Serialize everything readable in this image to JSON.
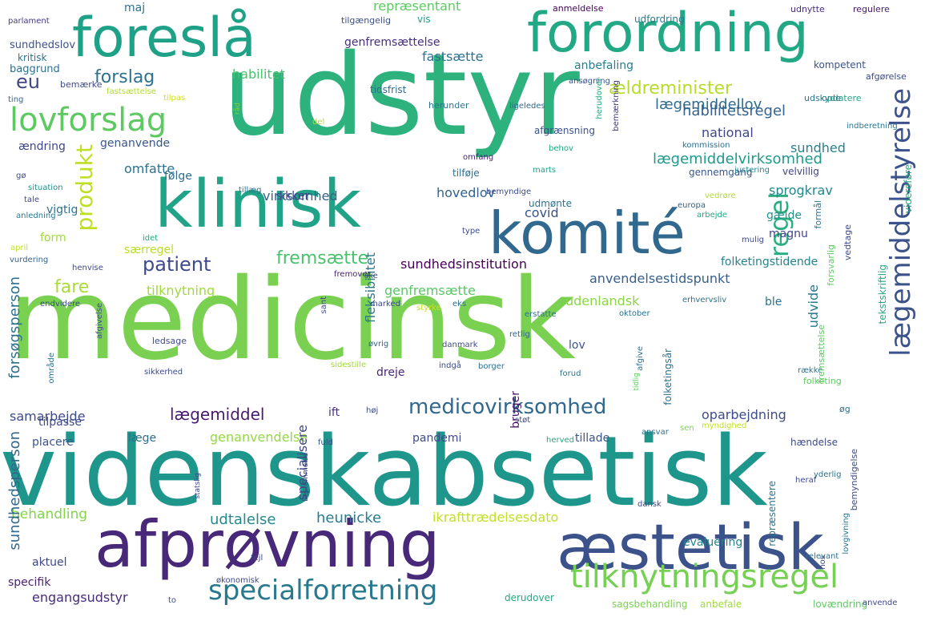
{
  "words": [
    {
      "text": "medicinsk",
      "color": "#7ad151"
    },
    {
      "text": "udstyr",
      "color": "#2db27d"
    },
    {
      "text": "videnskabsetisk",
      "color": "#1f968b"
    },
    {
      "text": "afprøvning",
      "color": "#482878"
    },
    {
      "text": "æstetisk",
      "color": "#3b528b"
    },
    {
      "text": "klinisk",
      "color": "#20a386"
    },
    {
      "text": "komité",
      "color": "#31688e"
    },
    {
      "text": "foreslå",
      "color": "#1fa187"
    },
    {
      "text": "forordning",
      "color": "#22a884"
    },
    {
      "text": "lægemiddelstyrelse",
      "color": "#3b528b"
    },
    {
      "text": "lovforslag",
      "color": "#5ec962"
    },
    {
      "text": "tilknytningsregel",
      "color": "#75d054"
    },
    {
      "text": "specialforretning",
      "color": "#2a788e"
    },
    {
      "text": "medicovirksomhed",
      "color": "#31688e"
    },
    {
      "text": "regel",
      "color": "#29af7f"
    },
    {
      "text": "produkt",
      "color": "#bddf26"
    },
    {
      "text": "patient",
      "color": "#3e4a89"
    },
    {
      "text": "fremsætte",
      "color": "#4ac16d"
    },
    {
      "text": "forslag",
      "color": "#2c728e"
    },
    {
      "text": "eu",
      "color": "#404688"
    },
    {
      "text": "fare",
      "color": "#a8db34"
    },
    {
      "text": "ældreminister",
      "color": "#b5de2b"
    },
    {
      "text": "lægemiddellov",
      "color": "#2f6c8e"
    },
    {
      "text": "habilitetsregel",
      "color": "#33638d"
    },
    {
      "text": "lægemiddelvirksomhed",
      "color": "#1f9a8a"
    },
    {
      "text": "sundhedsinstitution",
      "color": "#440154"
    },
    {
      "text": "anvendelsestidspunkt",
      "color": "#35608d"
    },
    {
      "text": "samarbejde",
      "color": "#3e4a89"
    },
    {
      "text": "lægemiddel",
      "color": "#481a6c"
    },
    {
      "text": "ikrafttrædelsesdato",
      "color": "#c0df25"
    },
    {
      "text": "udtalelse",
      "color": "#23898e"
    },
    {
      "text": "heunicke",
      "color": "#287c8e"
    },
    {
      "text": "engangsudstyr",
      "color": "#472c7a"
    },
    {
      "text": "behandling",
      "color": "#84d44b"
    },
    {
      "text": "genanvendelse",
      "color": "#95d840"
    },
    {
      "text": "oparbejdning",
      "color": "#3e4c8a"
    },
    {
      "text": "sundhedsperson",
      "color": "#31688e"
    },
    {
      "text": "forsøgsperson",
      "color": "#2d708e"
    },
    {
      "text": "fleksibilitet",
      "color": "#2a778e"
    },
    {
      "text": "genfremsættelse",
      "color": "#472f7d"
    },
    {
      "text": "genfremsætte",
      "color": "#58c765"
    },
    {
      "text": "repræsentant",
      "color": "#5ec962"
    },
    {
      "text": "fastsætte",
      "color": "#2c728e"
    },
    {
      "text": "anbefaling",
      "color": "#287d8e"
    },
    {
      "text": "habilitet",
      "color": "#4ac16d"
    },
    {
      "text": "tilknytning",
      "color": "#a0da39"
    },
    {
      "text": "udenlandsk",
      "color": "#8bd646"
    },
    {
      "text": "specialisere",
      "color": "#3f4788"
    },
    {
      "text": "folketingstidende",
      "color": "#26818e"
    },
    {
      "text": "virksomhed",
      "color": "#33638d"
    },
    {
      "text": "omfatte",
      "color": "#2c728e"
    },
    {
      "text": "hovedlov",
      "color": "#33638d"
    },
    {
      "text": "sprogkrav",
      "color": "#24868e"
    },
    {
      "text": "national",
      "color": "#404688"
    },
    {
      "text": "sundhed",
      "color": "#26828e"
    },
    {
      "text": "covid",
      "color": "#3a548c"
    },
    {
      "text": "gælde",
      "color": "#21918c"
    },
    {
      "text": "magnu",
      "color": "#414487"
    },
    {
      "text": "udvide",
      "color": "#2a788e"
    },
    {
      "text": "ble",
      "color": "#2c728e"
    },
    {
      "text": "vigtig",
      "color": "#2c728e"
    },
    {
      "text": "sikker",
      "color": "#3f4889"
    },
    {
      "text": "pandemi",
      "color": "#3e4a89"
    },
    {
      "text": "tillade",
      "color": "#39558c"
    },
    {
      "text": "lov",
      "color": "#3b528b"
    },
    {
      "text": "dreje",
      "color": "#482677"
    },
    {
      "text": "ift",
      "color": "#46337f"
    },
    {
      "text": "læge",
      "color": "#2e6e8e"
    },
    {
      "text": "placere",
      "color": "#3a548c"
    },
    {
      "text": "tilpasse",
      "color": "#3e4a89"
    },
    {
      "text": "aktuel",
      "color": "#3f4788"
    },
    {
      "text": "specifik",
      "color": "#481f70"
    },
    {
      "text": "evaluering",
      "color": "#25858e"
    },
    {
      "text": "bruger",
      "color": "#471164"
    },
    {
      "text": "særregel",
      "color": "#b8de29"
    },
    {
      "text": "form",
      "color": "#a2da37"
    },
    {
      "text": "maj",
      "color": "#2d708e"
    },
    {
      "text": "genanvende",
      "color": "#39568c"
    },
    {
      "text": "ændring",
      "color": "#404588"
    },
    {
      "text": "følge",
      "color": "#2e6e8e"
    },
    {
      "text": "sundhedslov",
      "color": "#3b528b"
    },
    {
      "text": "baggrund",
      "color": "#2d708e"
    },
    {
      "text": "kritisk",
      "color": "#2c728e"
    },
    {
      "text": "vis",
      "color": "#1fa088"
    },
    {
      "text": "udfordring",
      "color": "#287c8e"
    },
    {
      "text": "tidsfrist",
      "color": "#2f6c8e"
    },
    {
      "text": "afgrænsning",
      "color": "#3b528b"
    },
    {
      "text": "tilføje",
      "color": "#2e6e8e"
    },
    {
      "text": "udmønte",
      "color": "#2c728e"
    },
    {
      "text": "gennemgang",
      "color": "#39568c"
    },
    {
      "text": "velvillig",
      "color": "#404588"
    },
    {
      "text": "kompetent",
      "color": "#3b528b"
    },
    {
      "text": "opdatere",
      "color": "#22a884"
    },
    {
      "text": "udskyde",
      "color": "#2a788e"
    },
    {
      "text": "afgørelse",
      "color": "#3e4a89"
    },
    {
      "text": "udnytte",
      "color": "#472d7b"
    },
    {
      "text": "regulere",
      "color": "#481769"
    },
    {
      "text": "anmeldelse",
      "color": "#440154"
    },
    {
      "text": "tilgængelig",
      "color": "#3b528b"
    },
    {
      "text": "parlament",
      "color": "#443983"
    },
    {
      "text": "bemærke",
      "color": "#3e4a89"
    },
    {
      "text": "ting",
      "color": "#32658e"
    },
    {
      "text": "fastsættelse",
      "color": "#b2dd2d"
    },
    {
      "text": "tilpas",
      "color": "#d0e11c"
    },
    {
      "text": "ansøgning",
      "color": "#3b528b"
    },
    {
      "text": "herudover",
      "color": "#22a884"
    },
    {
      "text": "herunder",
      "color": "#2c728e"
    },
    {
      "text": "ligeledes",
      "color": "#31688e"
    },
    {
      "text": "del",
      "color": "#b5de2b"
    },
    {
      "text": "råd",
      "color": "#75d054"
    },
    {
      "text": "bemærkning",
      "color": "#453581"
    },
    {
      "text": "indberetning",
      "color": "#2a788e"
    },
    {
      "text": "kommission",
      "color": "#2c728e"
    },
    {
      "text": "omfang",
      "color": "#481d6f"
    },
    {
      "text": "behov",
      "color": "#22a884"
    },
    {
      "text": "marts",
      "color": "#1f9e89"
    },
    {
      "text": "justering",
      "color": "#26818e"
    },
    {
      "text": "gø",
      "color": "#3e4a89"
    },
    {
      "text": "situation",
      "color": "#21918c"
    },
    {
      "text": "tillæg",
      "color": "#2c728e"
    },
    {
      "text": "tale",
      "color": "#3e4989"
    },
    {
      "text": "anledning",
      "color": "#2a788e"
    },
    {
      "text": "bemyndige",
      "color": "#3e4a89"
    },
    {
      "text": "vedrøre",
      "color": "#b2dd2d"
    },
    {
      "text": "europa",
      "color": "#33638d"
    },
    {
      "text": "arbejde",
      "color": "#22a884"
    },
    {
      "text": "mulig",
      "color": "#3e4a89"
    },
    {
      "text": "idet",
      "color": "#22a884"
    },
    {
      "text": "type",
      "color": "#3e4a89"
    },
    {
      "text": "april",
      "color": "#c2df23"
    },
    {
      "text": "vurdering",
      "color": "#32658e"
    },
    {
      "text": "henvise",
      "color": "#3e4a89"
    },
    {
      "text": "fremover",
      "color": "#482173"
    },
    {
      "text": "ske",
      "color": "#3e4a89"
    },
    {
      "text": "endvidere",
      "color": "#3e4a89"
    },
    {
      "text": "afgivelse",
      "color": "#3e4a89"
    },
    {
      "text": "sant",
      "color": "#3e4a89"
    },
    {
      "text": "marked",
      "color": "#3e4a89"
    },
    {
      "text": "styrke",
      "color": "#c2df23"
    },
    {
      "text": "eks",
      "color": "#2c728e"
    },
    {
      "text": "erhvervsliv",
      "color": "#2c728e"
    },
    {
      "text": "erstatte",
      "color": "#2c728e"
    },
    {
      "text": "oktober",
      "color": "#2c728e"
    },
    {
      "text": "ledsage",
      "color": "#3e4a89"
    },
    {
      "text": "øvrig",
      "color": "#32658e"
    },
    {
      "text": "danmark",
      "color": "#3e4a89"
    },
    {
      "text": "retlig",
      "color": "#32658e"
    },
    {
      "text": "indgå",
      "color": "#3e4a89"
    },
    {
      "text": "borger",
      "color": "#2c728e"
    },
    {
      "text": "række",
      "color": "#2c728e"
    },
    {
      "text": "område",
      "color": "#2c728e"
    },
    {
      "text": "sikkerhed",
      "color": "#3e4a89"
    },
    {
      "text": "sidestille",
      "color": "#a0da39"
    },
    {
      "text": "forud",
      "color": "#2c728e"
    },
    {
      "text": "afgive",
      "color": "#2c728e"
    },
    {
      "text": "tidlig",
      "color": "#5ec962"
    },
    {
      "text": "folketing",
      "color": "#5ec962"
    },
    {
      "text": "øg",
      "color": "#2c728e"
    },
    {
      "text": "høj",
      "color": "#3e4a89"
    },
    {
      "text": "støt",
      "color": "#3e4a89"
    },
    {
      "text": "myndighed",
      "color": "#c2df23"
    },
    {
      "text": "sen",
      "color": "#7ad151"
    },
    {
      "text": "ansvar",
      "color": "#2c728e"
    },
    {
      "text": "fuld",
      "color": "#3e4a89"
    },
    {
      "text": "herved",
      "color": "#22a884"
    },
    {
      "text": "hændelse",
      "color": "#3e4a89"
    },
    {
      "text": "yderlig",
      "color": "#2c728e"
    },
    {
      "text": "heraf",
      "color": "#3e4a89"
    },
    {
      "text": "statslig",
      "color": "#3e4a89"
    },
    {
      "text": "dansk",
      "color": "#3e4a89"
    },
    {
      "text": "relevant",
      "color": "#2c728e"
    },
    {
      "text": "fejl",
      "color": "#3e4a89"
    },
    {
      "text": "økonomisk",
      "color": "#3e4a89"
    },
    {
      "text": "to",
      "color": "#3e4a89"
    },
    {
      "text": "derudover",
      "color": "#22a884"
    },
    {
      "text": "sagsbehandling",
      "color": "#7ad151"
    },
    {
      "text": "lovændring",
      "color": "#5ec962"
    },
    {
      "text": "anbefale",
      "color": "#a0da39"
    },
    {
      "text": "anvende",
      "color": "#3e4a89"
    },
    {
      "text": "hos",
      "color": "#3e4a89"
    },
    {
      "text": "bestemmelse",
      "color": "#3e4a89"
    },
    {
      "text": "bemyndigelse",
      "color": "#3e4a89"
    },
    {
      "text": "lovgivning",
      "color": "#2c728e"
    },
    {
      "text": "repræsentere",
      "color": "#2c728e"
    },
    {
      "text": "folketingsår",
      "color": "#2c728e"
    },
    {
      "text": "fremsættelse",
      "color": "#5ec962"
    },
    {
      "text": "vedtage",
      "color": "#3e4a89"
    },
    {
      "text": "formål",
      "color": "#2c728e"
    },
    {
      "text": "forsvarlig",
      "color": "#5ec962"
    },
    {
      "text": "tekstskriftlig",
      "color": "#22a884"
    },
    {
      "text": "videreføre",
      "color": "#22a884"
    }
  ]
}
